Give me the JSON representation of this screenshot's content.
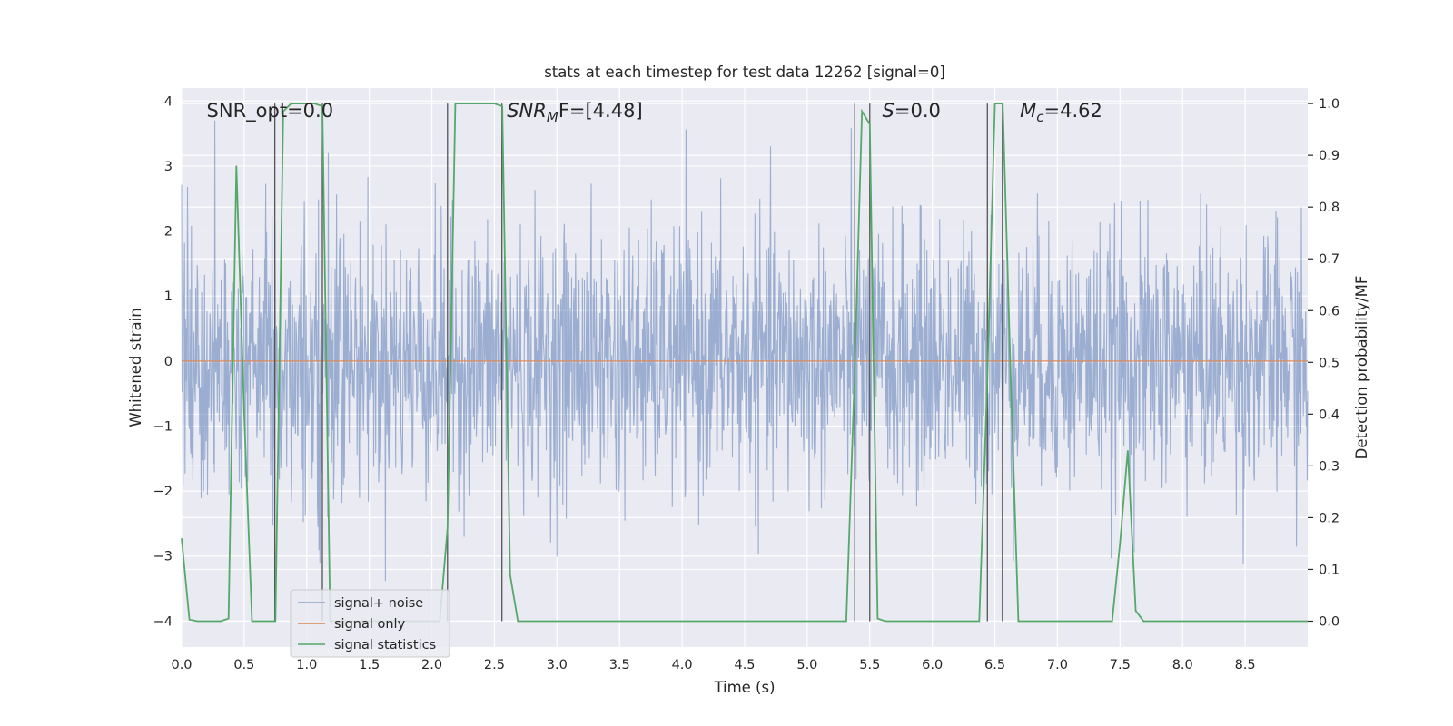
{
  "chart_data": {
    "type": "line",
    "title": "stats at each timestep for test data 12262 [signal=0]",
    "xlabel": "Time (s)",
    "ylabel": "Whitened strain",
    "y2label": "Detection probability/MF",
    "xlim": [
      0.0,
      9.0
    ],
    "ylim": [
      -4.4,
      4.2
    ],
    "y2lim": [
      -0.05,
      1.03
    ],
    "x_ticks": [
      "0.0",
      "0.5",
      "1.0",
      "1.5",
      "2.0",
      "2.5",
      "3.0",
      "3.5",
      "4.0",
      "4.5",
      "5.0",
      "5.5",
      "6.0",
      "6.5",
      "7.0",
      "7.5",
      "8.0",
      "8.5"
    ],
    "y_ticks": [
      "−4",
      "−3",
      "−2",
      "−1",
      "0",
      "1",
      "2",
      "3",
      "4"
    ],
    "y2_ticks": [
      "0.0",
      "0.1",
      "0.2",
      "0.3",
      "0.4",
      "0.5",
      "0.6",
      "0.7",
      "0.8",
      "0.9",
      "1.0"
    ],
    "grid": true,
    "legend_location": "lower-left",
    "annotations": [
      {
        "text": "SNR_opt=0.0",
        "x": 0.2,
        "y": 3.85
      },
      {
        "pre": "SNR",
        "sub": "M",
        "post": "F=[4.48]",
        "italic": true,
        "x": 2.6,
        "y": 3.85
      },
      {
        "pre": "S",
        "sub": "",
        "post": "=0.0",
        "italic": true,
        "x": 5.6,
        "y": 3.85
      },
      {
        "pre": "M",
        "sub": "c",
        "post": "=4.62",
        "italic": true,
        "x": 6.7,
        "y": 3.85
      }
    ],
    "series": [
      {
        "name": "signal+ noise",
        "color": "#4c72b0",
        "axis": "left",
        "kind": "noise",
        "envelope_abs_max": 3.8,
        "typical_band": [
          -1.7,
          1.6
        ],
        "sample_rate_hz": 256
      },
      {
        "name": "signal only",
        "color": "#dd8452",
        "axis": "left",
        "x": [
          0.0,
          9.0
        ],
        "y": [
          0.0,
          0.0
        ]
      },
      {
        "name": "signal statistics",
        "color": "#55a868",
        "axis": "right",
        "x": [
          0.0,
          0.0625,
          0.125,
          0.1875,
          0.25,
          0.3125,
          0.375,
          0.4375,
          0.5,
          0.5625,
          0.625,
          0.6875,
          0.75,
          0.8125,
          0.875,
          0.9375,
          1.0,
          1.0625,
          1.125,
          1.1875,
          1.25,
          1.3125,
          1.375,
          1.4375,
          1.5,
          1.5625,
          1.625,
          1.6875,
          1.75,
          1.8125,
          1.875,
          1.9375,
          2.0,
          2.0625,
          2.125,
          2.1875,
          2.25,
          2.3125,
          2.375,
          2.4375,
          2.5,
          2.5625,
          2.625,
          2.6875,
          2.75,
          2.8125,
          2.875,
          2.9375,
          3.0,
          3.5,
          4.0,
          4.5,
          5.0,
          5.25,
          5.3125,
          5.375,
          5.4375,
          5.5,
          5.5625,
          5.625,
          5.6875,
          5.75,
          5.8125,
          5.875,
          5.9375,
          6.0,
          6.0625,
          6.125,
          6.1875,
          6.25,
          6.3125,
          6.375,
          6.4375,
          6.5,
          6.5625,
          6.625,
          6.6875,
          6.75,
          6.8125,
          6.875,
          6.9375,
          7.0,
          7.0625,
          7.125,
          7.1875,
          7.25,
          7.3125,
          7.375,
          7.4375,
          7.5,
          7.5625,
          7.625,
          7.6875,
          7.75,
          7.8125,
          7.875,
          7.9375,
          8.0,
          8.5,
          9.0
        ],
        "y": [
          0.16,
          0.003,
          0.0,
          0.0,
          0.0,
          0.0,
          0.005,
          0.88,
          0.4,
          0.0,
          0.0,
          0.0,
          0.0,
          0.985,
          1.0,
          1.0,
          1.0,
          1.0,
          0.995,
          0.0,
          0.0,
          0.0,
          0.0,
          0.0,
          0.0,
          0.0,
          0.0,
          0.0,
          0.0,
          0.0,
          0.0,
          0.0,
          0.0,
          0.0,
          0.18,
          1.0,
          1.0,
          1.0,
          1.0,
          1.0,
          1.0,
          0.995,
          0.09,
          0.0,
          0.0,
          0.0,
          0.0,
          0.0,
          0.0,
          0.0,
          0.0,
          0.0,
          0.0,
          0.0,
          0.0,
          0.45,
          0.985,
          0.96,
          0.005,
          0.0,
          0.0,
          0.0,
          0.0,
          0.0,
          0.0,
          0.0,
          0.0,
          0.0,
          0.0,
          0.0,
          0.0,
          0.0,
          0.45,
          1.0,
          1.0,
          0.48,
          0.0,
          0.0,
          0.0,
          0.0,
          0.0,
          0.0,
          0.0,
          0.0,
          0.0,
          0.0,
          0.0,
          0.0,
          0.0,
          0.15,
          0.33,
          0.02,
          0.0,
          0.0,
          0.0,
          0.0,
          0.0,
          0.0,
          0.0,
          0.0
        ]
      }
    ],
    "vertical_markers_x": [
      0.745,
      1.125,
      2.125,
      2.56,
      5.38,
      5.5,
      6.44,
      6.56
    ]
  }
}
